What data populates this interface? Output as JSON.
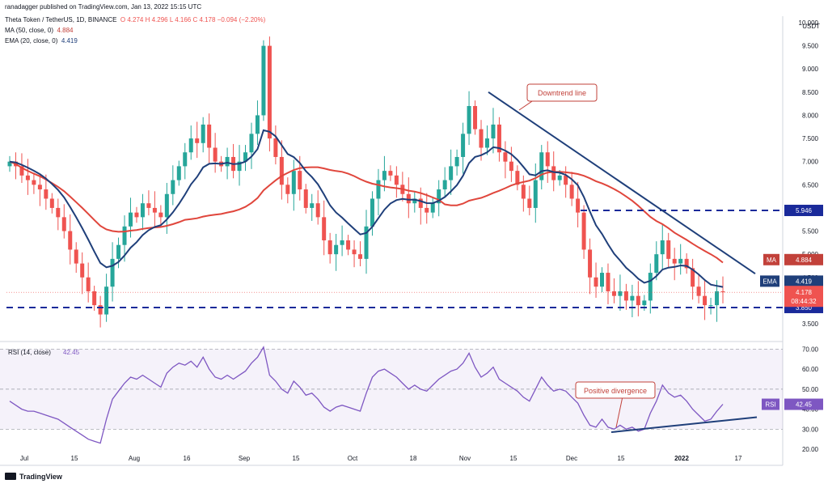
{
  "header": {
    "published": "ranadagger published on TradingView.com, Jan 13, 2022 15:15 UTC",
    "symbol": "Theta Token / TetherUS, 1D, BINANCE",
    "ohlc": "O 4.274  H 4.296  L 4.166  C 4.178  −0.094 (−2.20%)",
    "ma_label": "MA (50, close, 0)",
    "ma_value": "4.884",
    "ema_label": "EMA (20, close, 0)",
    "ema_value": "4.419",
    "currency": "USDT"
  },
  "footer": {
    "brand": "TradingView"
  },
  "annotations": {
    "downtrend": "Downtrend line",
    "divergence": "Positive divergence"
  },
  "badges": {
    "resistance": "5.946",
    "support": "3.850",
    "ma": "MA",
    "ma_value": "4.884",
    "ema": "EMA",
    "ema_value": "4.419",
    "price": "4.178",
    "countdown": "08:44:32",
    "rsi": "RSI",
    "rsi_value": "42.45"
  },
  "rsi_header": {
    "label": "RSI (14, close)",
    "value": "42.45"
  },
  "colors": {
    "up": "#26a69a",
    "down": "#ef5350",
    "ma": "#e0463c",
    "ema": "#1f3f7a",
    "rsi": "#7e57c2",
    "trend": "#1f3f7a",
    "level": "#1a2a9a"
  },
  "chart_data": [
    {
      "type": "candlestick",
      "title": "Theta Token / TetherUS, 1D, BINANCE",
      "x_ticks": [
        "Jul",
        "15",
        "Aug",
        "16",
        "Sep",
        "15",
        "Oct",
        "18",
        "Nov",
        "15",
        "Dec",
        "15",
        "2022",
        "17"
      ],
      "y_ticks": [
        "10.000",
        "9.500",
        "9.000",
        "8.500",
        "8.000",
        "7.500",
        "7.000",
        "6.500",
        "6.000",
        "5.500",
        "5.000",
        "4.500",
        "4.000",
        "3.500"
      ],
      "ylim": [
        3.5,
        10.0
      ],
      "close_path": [
        7.0,
        6.9,
        6.7,
        6.6,
        6.5,
        6.4,
        6.2,
        6.0,
        5.8,
        5.5,
        5.1,
        4.8,
        4.5,
        4.2,
        3.9,
        3.7,
        4.3,
        4.9,
        5.2,
        5.6,
        5.9,
        5.8,
        6.1,
        6.0,
        5.9,
        5.8,
        6.3,
        6.6,
        6.9,
        7.2,
        7.5,
        7.4,
        7.8,
        7.3,
        7.0,
        6.9,
        7.1,
        6.8,
        7.0,
        7.2,
        7.6,
        8.0,
        9.5,
        7.5,
        7.1,
        6.5,
        6.3,
        6.8,
        6.4,
        6.0,
        6.1,
        5.8,
        5.3,
        5.0,
        5.2,
        5.3,
        5.1,
        5.0,
        4.9,
        5.6,
        6.2,
        6.6,
        6.8,
        6.7,
        6.5,
        6.3,
        6.1,
        6.2,
        6.0,
        5.9,
        6.1,
        6.4,
        6.6,
        6.9,
        7.1,
        7.6,
        8.2,
        7.7,
        7.3,
        7.5,
        7.8,
        7.2,
        7.0,
        6.8,
        6.5,
        6.2,
        6.0,
        6.6,
        7.2,
        6.9,
        6.6,
        6.7,
        6.5,
        6.2,
        5.9,
        5.1,
        4.5,
        4.3,
        4.6,
        4.2,
        4.1,
        4.2,
        4.0,
        4.1,
        3.9,
        4.0,
        4.6,
        5.0,
        5.3,
        4.9,
        4.8,
        4.9,
        4.7,
        4.3,
        4.1,
        3.9,
        3.9,
        4.2,
        4.18
      ]
    },
    {
      "type": "line",
      "title": "RSI (14, close)",
      "y_ticks": [
        "70.00",
        "60.00",
        "50.00",
        "40.00",
        "30.00",
        "20.00"
      ],
      "ylim": [
        18,
        73
      ],
      "last": 42.45,
      "values": [
        44,
        42,
        40,
        39,
        39,
        38,
        37,
        36,
        35,
        33,
        31,
        29,
        27,
        25,
        24,
        23,
        35,
        45,
        49,
        53,
        56,
        55,
        57,
        55,
        53,
        51,
        58,
        61,
        63,
        62,
        64,
        61,
        66,
        60,
        56,
        55,
        57,
        55,
        57,
        59,
        63,
        66,
        71,
        57,
        54,
        50,
        48,
        54,
        51,
        47,
        48,
        45,
        41,
        39,
        41,
        42,
        41,
        40,
        39,
        48,
        56,
        59,
        60,
        58,
        56,
        53,
        50,
        52,
        50,
        49,
        52,
        55,
        57,
        59,
        60,
        63,
        68,
        61,
        56,
        58,
        61,
        55,
        53,
        51,
        49,
        46,
        44,
        50,
        56,
        52,
        49,
        50,
        49,
        46,
        43,
        37,
        32,
        31,
        35,
        31,
        30,
        32,
        30,
        31,
        29,
        30,
        38,
        44,
        52,
        48,
        46,
        47,
        44,
        40,
        37,
        34,
        35,
        39,
        42.45
      ]
    }
  ]
}
